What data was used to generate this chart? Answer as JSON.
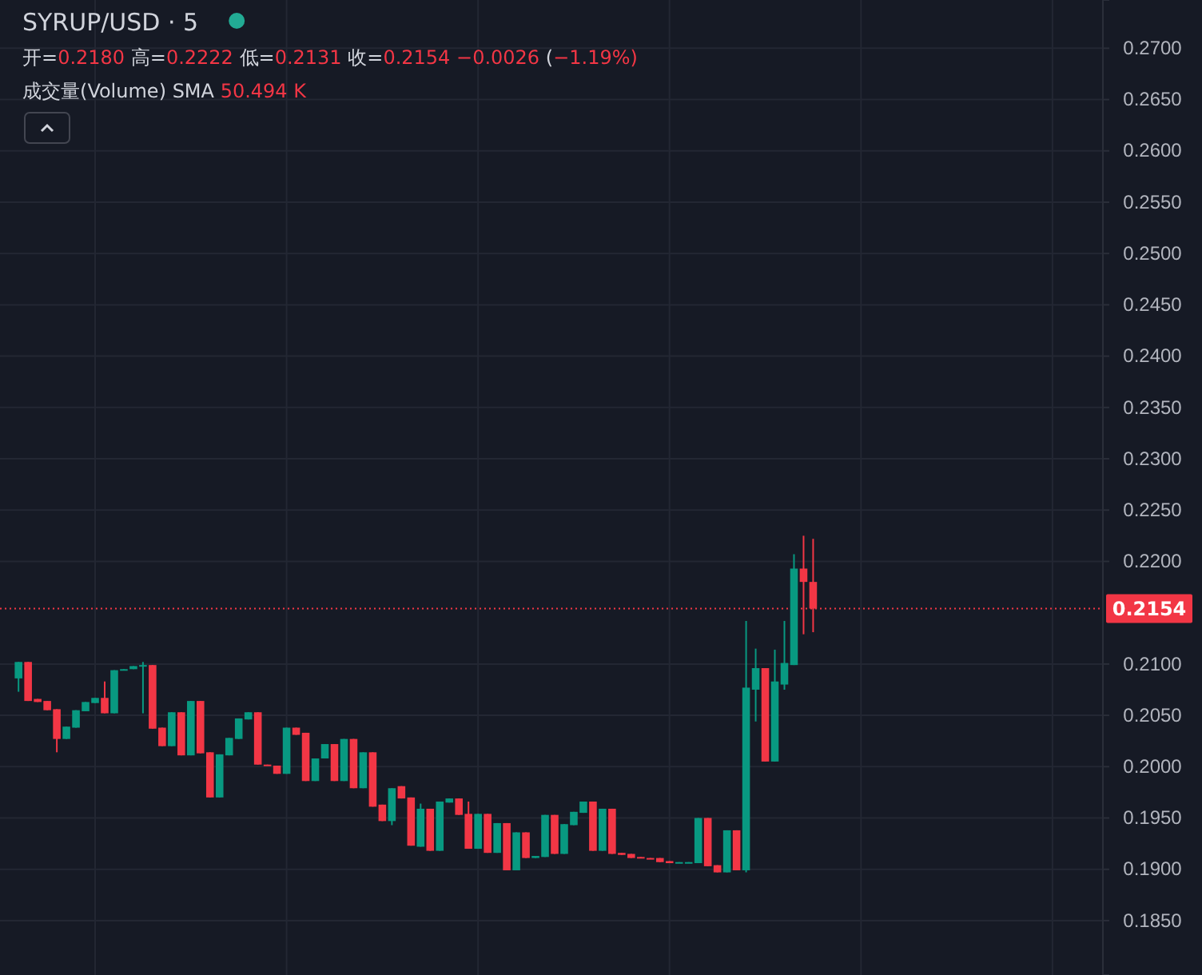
{
  "chart_data": {
    "type": "candlestick",
    "title": "SYRUP/USD · 5",
    "annotations": [
      "开=0.2180 高=0.2222 低=0.2131 收=0.2154 −0.0026 (−1.19%)",
      "成交量(Volume) SMA 50.494 K"
    ],
    "categories": [
      null,
      null,
      null,
      null,
      null,
      null,
      null,
      null,
      null,
      null,
      null,
      null,
      null,
      null,
      null,
      null,
      null,
      null,
      null,
      null,
      null,
      null,
      null,
      null,
      null,
      null,
      null,
      null,
      null,
      null,
      null,
      null,
      null,
      null,
      null,
      null,
      null,
      null,
      null,
      null,
      null,
      null,
      null,
      null,
      null,
      null,
      null,
      null,
      null,
      null,
      null,
      null,
      null,
      null,
      null,
      null,
      null,
      null,
      null,
      null,
      null,
      null,
      null,
      null,
      null,
      null,
      null,
      null,
      null,
      null,
      null,
      null,
      null,
      null,
      null,
      null,
      null,
      null,
      null,
      null,
      null,
      null,
      null,
      null,
      null,
      null,
      null,
      null,
      null,
      null,
      null,
      null,
      null,
      null,
      null,
      null,
      null,
      null,
      null,
      null,
      null,
      null,
      null,
      null,
      null,
      null,
      null,
      null,
      null,
      null,
      null,
      null,
      null
    ],
    "ohlc": [
      [
        0.2086,
        0.2102,
        0.2073,
        0.2102
      ],
      [
        0.2102,
        0.2102,
        0.2064,
        0.2064
      ],
      [
        0.2066,
        0.2066,
        0.2063,
        0.2063
      ],
      [
        0.2064,
        0.2064,
        0.2055,
        0.2055
      ],
      [
        0.2056,
        0.2056,
        0.2014,
        0.2027
      ],
      [
        0.2027,
        0.2039,
        0.2027,
        0.2039
      ],
      [
        0.2038,
        0.2055,
        0.2038,
        0.2055
      ],
      [
        0.2054,
        0.2063,
        0.2054,
        0.2063
      ],
      [
        0.2062,
        0.2067,
        0.2062,
        0.2067
      ],
      [
        0.2067,
        0.2083,
        0.2052,
        0.2052
      ],
      [
        0.2052,
        0.2094,
        0.2052,
        0.2094
      ],
      [
        0.2094,
        0.2095,
        0.2094,
        0.2095
      ],
      [
        0.2095,
        0.2098,
        0.2095,
        0.2098
      ],
      [
        0.2098,
        0.2102,
        0.2052,
        0.2099
      ],
      [
        0.2099,
        0.2099,
        0.2037,
        0.2037
      ],
      [
        0.2038,
        0.2038,
        0.202,
        0.202
      ],
      [
        0.202,
        0.2053,
        0.202,
        0.2053
      ],
      [
        0.2053,
        0.2053,
        0.2011,
        0.2011
      ],
      [
        0.2011,
        0.2064,
        0.2011,
        0.2064
      ],
      [
        0.2064,
        0.2064,
        0.2013,
        0.2013
      ],
      [
        0.2014,
        0.2014,
        0.197,
        0.197
      ],
      [
        0.197,
        0.2012,
        0.197,
        0.2012
      ],
      [
        0.2011,
        0.2028,
        0.2011,
        0.2028
      ],
      [
        0.2027,
        0.2047,
        0.2027,
        0.2047
      ],
      [
        0.2046,
        0.2053,
        0.2046,
        0.2053
      ],
      [
        0.2053,
        0.2053,
        0.2002,
        0.2002
      ],
      [
        0.2002,
        0.2002,
        0.2001,
        0.2001
      ],
      [
        0.2001,
        0.2001,
        0.1993,
        0.1993
      ],
      [
        0.1993,
        0.2038,
        0.1993,
        0.2038
      ],
      [
        0.2038,
        0.2038,
        0.2031,
        0.2031
      ],
      [
        0.2033,
        0.2033,
        0.1986,
        0.1986
      ],
      [
        0.1986,
        0.2008,
        0.1986,
        0.2008
      ],
      [
        0.2008,
        0.2022,
        0.2008,
        0.2022
      ],
      [
        0.2022,
        0.2022,
        0.1986,
        0.1986
      ],
      [
        0.1986,
        0.2027,
        0.1986,
        0.2027
      ],
      [
        0.2027,
        0.2027,
        0.1979,
        0.1979
      ],
      [
        0.1979,
        0.2014,
        0.1979,
        0.2014
      ],
      [
        0.2014,
        0.2014,
        0.1961,
        0.1961
      ],
      [
        0.1963,
        0.1963,
        0.1947,
        0.1947
      ],
      [
        0.1947,
        0.1979,
        0.1943,
        0.1979
      ],
      [
        0.1981,
        0.1981,
        0.1969,
        0.1969
      ],
      [
        0.197,
        0.197,
        0.1923,
        0.1923
      ],
      [
        0.1922,
        0.1964,
        0.1922,
        0.1959
      ],
      [
        0.1959,
        0.1959,
        0.1918,
        0.1918
      ],
      [
        0.1918,
        0.1966,
        0.1918,
        0.1966
      ],
      [
        0.1965,
        0.1969,
        0.1965,
        0.1969
      ],
      [
        0.1969,
        0.1969,
        0.1953,
        0.1953
      ],
      [
        0.1954,
        0.1966,
        0.192,
        0.192
      ],
      [
        0.192,
        0.1954,
        0.192,
        0.1954
      ],
      [
        0.1954,
        0.1954,
        0.1916,
        0.1916
      ],
      [
        0.1916,
        0.1945,
        0.1916,
        0.1945
      ],
      [
        0.1945,
        0.1945,
        0.1899,
        0.1899
      ],
      [
        0.1899,
        0.1936,
        0.1899,
        0.1936
      ],
      [
        0.1936,
        0.1936,
        0.1911,
        0.1911
      ],
      [
        0.1911,
        0.1913,
        0.1911,
        0.1913
      ],
      [
        0.1912,
        0.1953,
        0.1912,
        0.1953
      ],
      [
        0.1953,
        0.1953,
        0.1915,
        0.1915
      ],
      [
        0.1915,
        0.1944,
        0.1915,
        0.1944
      ],
      [
        0.1943,
        0.1956,
        0.1943,
        0.1956
      ],
      [
        0.1955,
        0.1966,
        0.1955,
        0.1966
      ],
      [
        0.1966,
        0.1966,
        0.1918,
        0.1918
      ],
      [
        0.1918,
        0.1959,
        0.1918,
        0.1959
      ],
      [
        0.1959,
        0.1959,
        0.1915,
        0.1915
      ],
      [
        0.1916,
        0.1916,
        0.1914,
        0.1914
      ],
      [
        0.1915,
        0.1915,
        0.1911,
        0.1911
      ],
      [
        0.1912,
        0.1912,
        0.1911,
        0.1911
      ],
      [
        0.1911,
        0.1911,
        0.191,
        0.191
      ],
      [
        0.1911,
        0.1911,
        0.1907,
        0.1907
      ],
      [
        0.1908,
        0.1908,
        0.1906,
        0.1906
      ],
      [
        0.1906,
        0.1907,
        0.1906,
        0.1907
      ],
      [
        0.1906,
        0.1907,
        0.1906,
        0.1907
      ],
      [
        0.1906,
        0.195,
        0.1906,
        0.195
      ],
      [
        0.195,
        0.195,
        0.1903,
        0.1903
      ],
      [
        0.1904,
        0.1904,
        0.1897,
        0.1897
      ],
      [
        0.1897,
        0.1938,
        0.1897,
        0.1938
      ],
      [
        0.1938,
        0.1938,
        0.1899,
        0.1899
      ],
      [
        0.1899,
        0.2142,
        0.1897,
        0.2077
      ],
      [
        0.2075,
        0.2115,
        0.2044,
        0.2096
      ],
      [
        0.2096,
        0.2096,
        0.2005,
        0.2005
      ],
      [
        0.2005,
        0.2114,
        0.2005,
        0.2083
      ],
      [
        0.208,
        0.2142,
        0.2075,
        0.2101
      ],
      [
        0.2099,
        0.2207,
        0.2099,
        0.2193
      ],
      [
        0.2193,
        0.2225,
        0.2129,
        0.218
      ],
      [
        0.218,
        0.2222,
        0.2131,
        0.2154
      ],
      null,
      null,
      null,
      null,
      null,
      null,
      null,
      null,
      null,
      null,
      null,
      null,
      null,
      null,
      null,
      null,
      null,
      null,
      null,
      null,
      null,
      null,
      null,
      null,
      null,
      null,
      null,
      null,
      null
    ],
    "colors": [
      "#089981",
      "#f23645",
      "#f23645",
      "#f23645",
      "#f23645",
      "#089981",
      "#089981",
      "#089981",
      "#089981",
      "#f23645",
      "#089981",
      "#089981",
      "#089981",
      "#089981",
      "#f23645",
      "#f23645",
      "#089981",
      "#f23645",
      "#089981",
      "#f23645",
      "#f23645",
      "#089981",
      "#089981",
      "#089981",
      "#089981",
      "#f23645",
      "#f23645",
      "#f23645",
      "#089981",
      "#f23645",
      "#f23645",
      "#089981",
      "#089981",
      "#f23645",
      "#089981",
      "#f23645",
      "#089981",
      "#f23645",
      "#f23645",
      "#089981",
      "#f23645",
      "#f23645",
      "#089981",
      "#f23645",
      "#089981",
      "#089981",
      "#f23645",
      "#f23645",
      "#089981",
      "#f23645",
      "#089981",
      "#f23645",
      "#089981",
      "#f23645",
      "#089981",
      "#089981",
      "#f23645",
      "#089981",
      "#089981",
      "#089981",
      "#f23645",
      "#089981",
      "#f23645",
      "#f23645",
      "#f23645",
      "#f23645",
      "#f23645",
      "#f23645",
      "#f23645",
      "#089981",
      "#089981",
      "#089981",
      "#f23645",
      "#f23645",
      "#089981",
      "#f23645",
      "#089981",
      "#089981",
      "#f23645",
      "#089981",
      "#089981",
      "#089981",
      "#f23645",
      "#f23645",
      null,
      null,
      null,
      null,
      null,
      null,
      null,
      null,
      null,
      null,
      null,
      null,
      null,
      null,
      null,
      null,
      null,
      null,
      null,
      null,
      null,
      null,
      null,
      null,
      null,
      null,
      null,
      null,
      null
    ],
    "ylim": [
      0.1797,
      0.2747
    ],
    "yticks": [
      {
        "value": 0.185,
        "label": "0.1850"
      },
      {
        "value": 0.19,
        "label": "0.1900"
      },
      {
        "value": 0.195,
        "label": "0.1950"
      },
      {
        "value": 0.2,
        "label": "0.2000"
      },
      {
        "value": 0.205,
        "label": "0.2050"
      },
      {
        "value": 0.21,
        "label": "0.2100"
      },
      {
        "value": 0.22,
        "label": "0.2200"
      },
      {
        "value": 0.225,
        "label": "0.2250"
      },
      {
        "value": 0.23,
        "label": "0.2300"
      },
      {
        "value": 0.235,
        "label": "0.2350"
      },
      {
        "value": 0.24,
        "label": "0.2400"
      },
      {
        "value": 0.245,
        "label": "0.2450"
      },
      {
        "value": 0.25,
        "label": "0.2500"
      },
      {
        "value": 0.255,
        "label": "0.2550"
      },
      {
        "value": 0.26,
        "label": "0.2600"
      },
      {
        "value": 0.265,
        "label": "0.2650"
      },
      {
        "value": 0.27,
        "label": "0.2700"
      }
    ],
    "ref_lines": [
      {
        "axis": "y",
        "value": 0.2154,
        "label": "0.2154",
        "color": "#f23645",
        "line_style": "dotted"
      }
    ],
    "grid": true,
    "tick_labels": "y"
  }
}
